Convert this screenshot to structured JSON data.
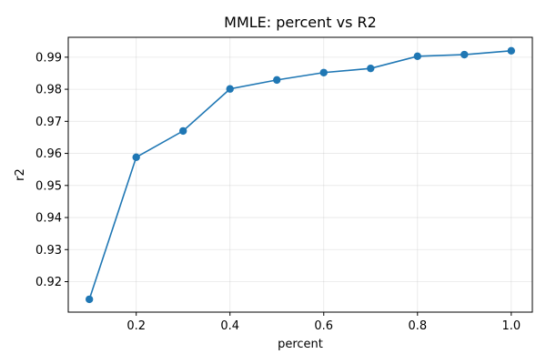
{
  "chart_data": {
    "type": "line",
    "title": "MMLE: percent vs R2",
    "xlabel": "percent",
    "ylabel": "r2",
    "xlim": [
      0.055,
      1.045
    ],
    "ylim": [
      0.9105,
      0.9962
    ],
    "xticks": [
      0.2,
      0.4,
      0.6,
      0.8,
      1.0
    ],
    "xtick_labels": [
      "0.2",
      "0.4",
      "0.6",
      "0.8",
      "1.0"
    ],
    "yticks": [
      0.92,
      0.93,
      0.94,
      0.95,
      0.96,
      0.97,
      0.98,
      0.99
    ],
    "ytick_labels": [
      "0.92",
      "0.93",
      "0.94",
      "0.95",
      "0.96",
      "0.97",
      "0.98",
      "0.99"
    ],
    "grid": true,
    "color": "#1f77b4",
    "series": [
      {
        "x": [
          0.1,
          0.2,
          0.3,
          0.4,
          0.5,
          0.6,
          0.7,
          0.8,
          0.9,
          1.0
        ],
        "values": [
          0.9145,
          0.9588,
          0.967,
          0.9801,
          0.9829,
          0.9852,
          0.9865,
          0.9903,
          0.9908,
          0.992
        ]
      }
    ]
  }
}
